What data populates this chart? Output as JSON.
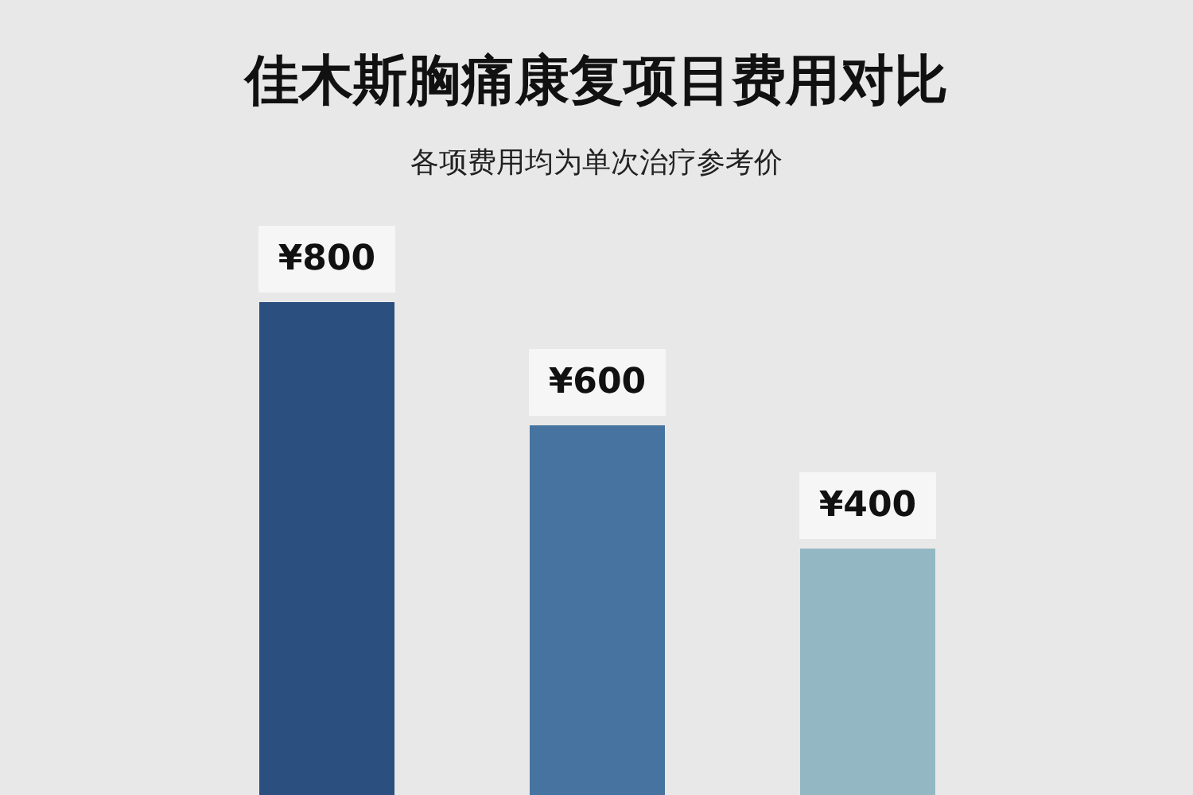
{
  "chart_data": {
    "type": "bar",
    "title": "佳木斯胸痛康复项目费用对比",
    "subtitle": "各项费用均为单次治疗参考价",
    "categories": [
      null,
      null,
      null
    ],
    "values": [
      800,
      600,
      400
    ],
    "colors": [
      "#2b4f7f",
      "#46739f",
      "#93b8c4"
    ],
    "value_labels": [
      "¥800",
      "¥600",
      "¥400"
    ],
    "ylim": [
      0,
      800
    ]
  }
}
